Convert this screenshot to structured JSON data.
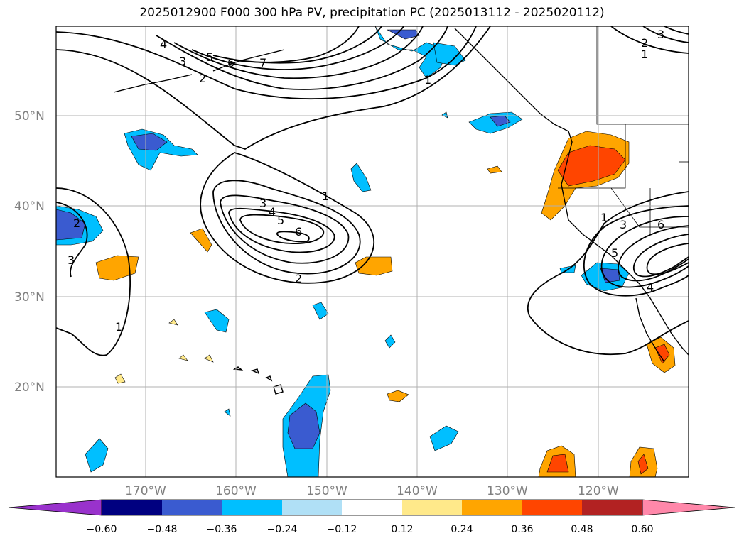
{
  "title": "2025012900 F000 300 hPa PV, precipitation PC (2025013112 - 2025020112)",
  "map": {
    "lat_labels": [
      "50°N",
      "40°N",
      "30°N",
      "20°N"
    ],
    "lon_labels": [
      "170°W",
      "160°W",
      "150°W",
      "140°W",
      "130°W",
      "120°W"
    ]
  },
  "pv_contour_labels": [
    "1",
    "2",
    "3",
    "4",
    "5",
    "6",
    "7"
  ],
  "colorbar": {
    "ticks": [
      "−0.60",
      "−0.48",
      "−0.36",
      "−0.24",
      "−0.12",
      "0.12",
      "0.24",
      "0.36",
      "0.48",
      "0.60"
    ],
    "colors": {
      "under": "#9932cc",
      "bins": [
        "#000080",
        "#3a5bd0",
        "#00bfff",
        "#b0e0f6",
        "#ffffff",
        "#ffe98a",
        "#ffa500",
        "#ff4500",
        "#b22222"
      ],
      "over": "#ff88aa"
    }
  }
}
